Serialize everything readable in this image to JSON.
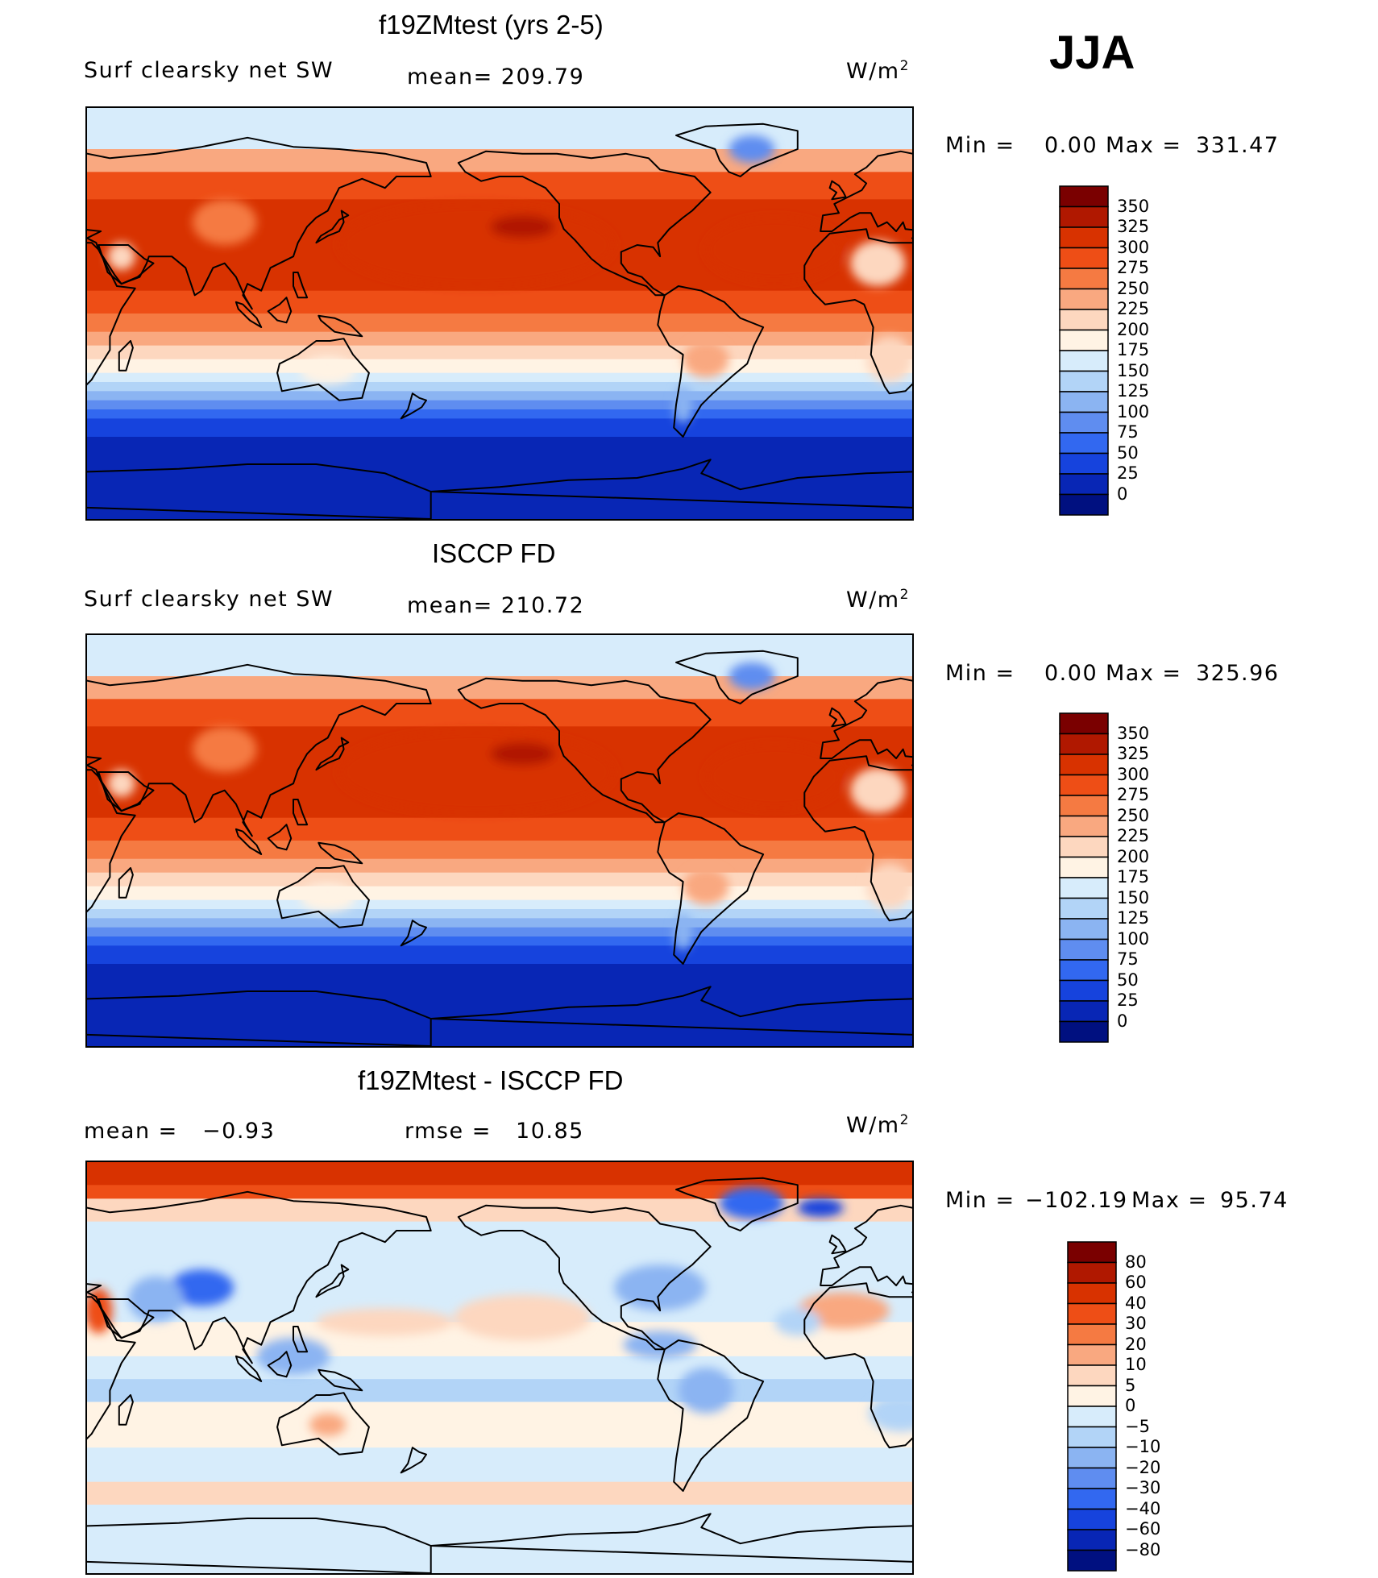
{
  "season": "JJA",
  "panels": [
    {
      "title": "f19ZMtest (yrs 2-5)",
      "left_label": "Surf clearsky net SW",
      "center_label": "mean= 209.79",
      "units": "W/m",
      "units_sup": "2",
      "minmax": {
        "min_label": "Min =",
        "min_value": "0.00",
        "max_label": "Max =",
        "max_value": "331.47"
      },
      "colorbar": {
        "levels": [
          "350",
          "325",
          "300",
          "275",
          "250",
          "225",
          "200",
          "175",
          "150",
          "125",
          "100",
          "75",
          "50",
          "25",
          "0"
        ],
        "colors": [
          "#7a0000",
          "#b01800",
          "#d83200",
          "#ee4e16",
          "#f57a42",
          "#f9a880",
          "#fdd7bf",
          "#fff3e4",
          "#d7ecfb",
          "#b2d4f7",
          "#8bb4f2",
          "#5f8df0",
          "#3268f0",
          "#1643dd",
          "#0826b5",
          "#001080"
        ]
      },
      "map_style": "sw"
    },
    {
      "title": "ISCCP FD",
      "left_label": "Surf clearsky net SW",
      "center_label": "mean= 210.72",
      "units": "W/m",
      "units_sup": "2",
      "minmax": {
        "min_label": "Min =",
        "min_value": "0.00",
        "max_label": "Max =",
        "max_value": "325.96"
      },
      "colorbar": {
        "levels": [
          "350",
          "325",
          "300",
          "275",
          "250",
          "225",
          "200",
          "175",
          "150",
          "125",
          "100",
          "75",
          "50",
          "25",
          "0"
        ],
        "colors": [
          "#7a0000",
          "#b01800",
          "#d83200",
          "#ee4e16",
          "#f57a42",
          "#f9a880",
          "#fdd7bf",
          "#fff3e4",
          "#d7ecfb",
          "#b2d4f7",
          "#8bb4f2",
          "#5f8df0",
          "#3268f0",
          "#1643dd",
          "#0826b5",
          "#001080"
        ]
      },
      "map_style": "sw"
    },
    {
      "title": "f19ZMtest - ISCCP FD",
      "left_label": "mean =   −0.93",
      "center_label": "rmse =   10.85",
      "units": "W/m",
      "units_sup": "2",
      "minmax": {
        "min_label": "Min =",
        "min_value": "−102.19",
        "max_label": "Max =",
        "max_value": "95.74"
      },
      "colorbar": {
        "levels": [
          "80",
          "60",
          "40",
          "30",
          "20",
          "10",
          "5",
          "0",
          "−5",
          "−10",
          "−20",
          "−30",
          "−40",
          "−60",
          "−80"
        ],
        "colors": [
          "#7a0000",
          "#b01800",
          "#d83200",
          "#ee4e16",
          "#f57a42",
          "#f9a880",
          "#fdd7bf",
          "#fff3e4",
          "#d7ecfb",
          "#b2d4f7",
          "#8bb4f2",
          "#5f8df0",
          "#3268f0",
          "#1643dd",
          "#0826b5",
          "#001080"
        ]
      },
      "map_style": "diff"
    }
  ]
}
